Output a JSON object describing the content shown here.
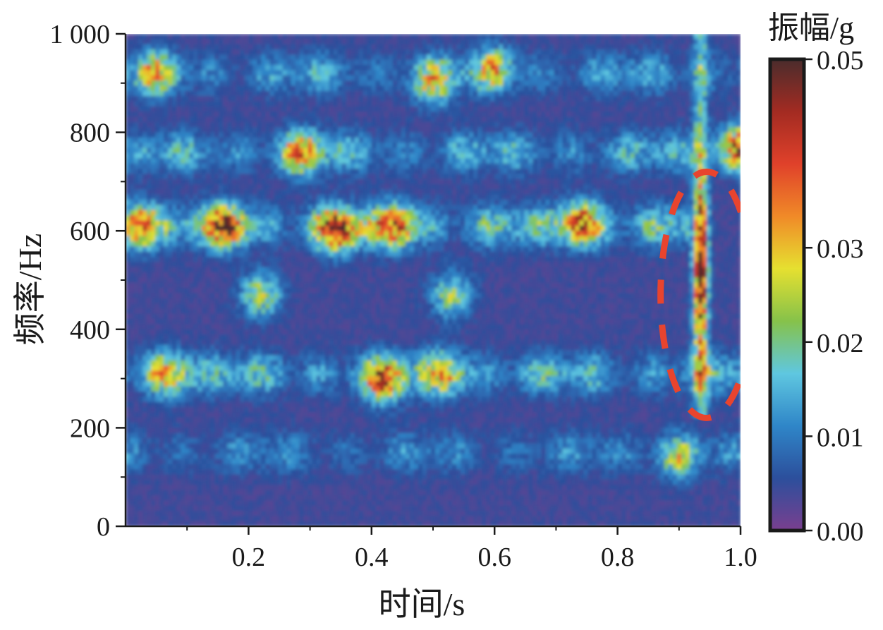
{
  "chart_data": {
    "type": "heatmap",
    "title": "",
    "xlabel": "时间/s",
    "ylabel": "频率/Hz",
    "xlim": [
      0,
      1.0
    ],
    "ylim": [
      0,
      1000
    ],
    "x_ticks": [
      {
        "value": 0.2,
        "label": "0.2"
      },
      {
        "value": 0.4,
        "label": "0.4"
      },
      {
        "value": 0.6,
        "label": "0.6"
      },
      {
        "value": 0.8,
        "label": "0.8"
      },
      {
        "value": 1.0,
        "label": "1.0"
      }
    ],
    "y_ticks": [
      {
        "value": 0,
        "label": "0"
      },
      {
        "value": 200,
        "label": "200"
      },
      {
        "value": 400,
        "label": "400"
      },
      {
        "value": 600,
        "label": "600"
      },
      {
        "value": 800,
        "label": "800"
      },
      {
        "value": 1000,
        "label": "1 000"
      }
    ],
    "colorbar": {
      "label": "振幅/g",
      "range": [
        0.0,
        0.05
      ],
      "ticks": [
        {
          "value": 0.0,
          "label": "0.00"
        },
        {
          "value": 0.01,
          "label": "0.01"
        },
        {
          "value": 0.02,
          "label": "0.02"
        },
        {
          "value": 0.03,
          "label": "0.03"
        },
        {
          "value": 0.05,
          "label": "0.05"
        }
      ],
      "colors": [
        "#7a3f8f",
        "#2c4f9c",
        "#2f86c8",
        "#5fc7e0",
        "#86c24a",
        "#e6e030",
        "#f08a28",
        "#e0412a",
        "#a32b22",
        "#4a2c2c"
      ]
    },
    "background_value": 0.004,
    "ridges": [
      {
        "t_start": 0.0,
        "t_end": 0.92,
        "freq": 610,
        "amplitude": 0.018
      },
      {
        "t_start": 0.0,
        "t_end": 1.0,
        "freq": 760,
        "amplitude": 0.014
      },
      {
        "t_start": 0.0,
        "t_end": 1.0,
        "freq": 310,
        "amplitude": 0.016
      },
      {
        "t_start": 0.0,
        "t_end": 1.0,
        "freq": 920,
        "amplitude": 0.012
      },
      {
        "t_start": 0.0,
        "t_end": 1.0,
        "freq": 150,
        "amplitude": 0.009
      }
    ],
    "hotspots": [
      {
        "t": 0.02,
        "freq": 610,
        "amplitude": 0.028
      },
      {
        "t": 0.165,
        "freq": 610,
        "amplitude": 0.032
      },
      {
        "t": 0.345,
        "freq": 600,
        "amplitude": 0.034
      },
      {
        "t": 0.44,
        "freq": 610,
        "amplitude": 0.03
      },
      {
        "t": 0.74,
        "freq": 615,
        "amplitude": 0.032
      },
      {
        "t": 0.285,
        "freq": 760,
        "amplitude": 0.024
      },
      {
        "t": 1.0,
        "freq": 770,
        "amplitude": 0.03
      },
      {
        "t": 0.07,
        "freq": 310,
        "amplitude": 0.024
      },
      {
        "t": 0.42,
        "freq": 295,
        "amplitude": 0.026
      },
      {
        "t": 0.52,
        "freq": 310,
        "amplitude": 0.022
      },
      {
        "t": 0.53,
        "freq": 470,
        "amplitude": 0.018
      },
      {
        "t": 0.22,
        "freq": 470,
        "amplitude": 0.02
      },
      {
        "t": 0.05,
        "freq": 920,
        "amplitude": 0.018
      },
      {
        "t": 0.5,
        "freq": 900,
        "amplitude": 0.02
      },
      {
        "t": 0.6,
        "freq": 930,
        "amplitude": 0.018
      },
      {
        "t": 0.9,
        "freq": 140,
        "amplitude": 0.018
      }
    ],
    "vertical_event": {
      "t": 0.935,
      "freq_min": 220,
      "freq_max": 1000,
      "peak_freq": 530,
      "peak_amplitude": 0.045
    },
    "annotation": {
      "shape": "ellipse",
      "style": "dashed",
      "color": "#e8442e",
      "t_center": 0.945,
      "freq_center": 470,
      "t_halfwidth": 0.075,
      "freq_halfheight": 250
    }
  }
}
